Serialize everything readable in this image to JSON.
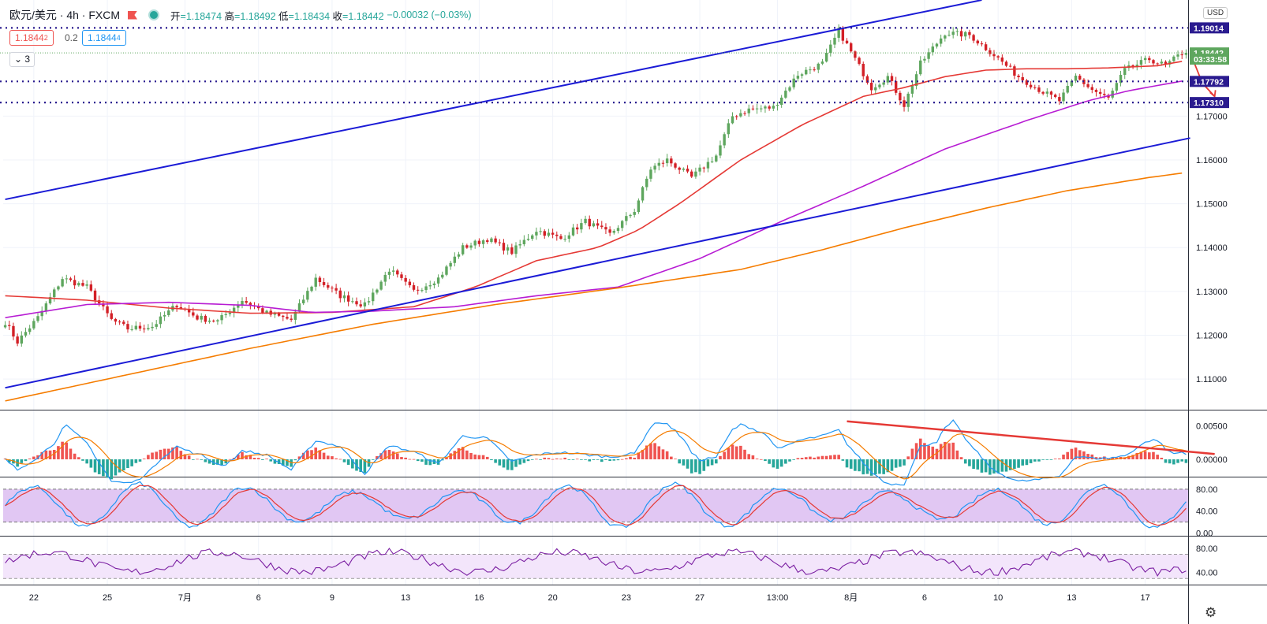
{
  "header": {
    "symbol": "欧元/美元 · 4h · FXCM",
    "ohlc": [
      {
        "label": "开",
        "value": "1.18474"
      },
      {
        "label": "高",
        "value": "1.18492"
      },
      {
        "label": "低",
        "value": "1.18434"
      },
      {
        "label": "收",
        "value": "1.18442"
      }
    ],
    "change": "−0.00032 (−0.03%)"
  },
  "quote": {
    "sell_main": "1.1844",
    "sell_small": "2",
    "spread": "0.2",
    "buy_main": "1.1844",
    "buy_small": "4"
  },
  "indicators_collapsed_count": "3",
  "currency_button": "USD",
  "colors": {
    "up": "#5ea65e",
    "down": "#d32027",
    "grid": "#f0f3fa",
    "trendline": "#1b1bd6",
    "ma_fast": "#e53935",
    "ma_mid": "#b71cd3",
    "ma_slow": "#f57c00",
    "hline": "#2a1b8f",
    "macd_line": "#2196f3",
    "signal_line": "#f57c00",
    "hist_pos": "#ef5350",
    "hist_neg": "#26a69a",
    "stoch_band": "#e1c7f3",
    "rsi_band": "#f3e5fb",
    "rsi_line": "#7b1fa2",
    "annotation": "#e53935"
  },
  "chart_data": {
    "type": "candlestick",
    "price_axis": {
      "labels": [
        "1.19014",
        "1.18442",
        "1.17792",
        "1.17310",
        "1.17000",
        "1.16000",
        "1.15000",
        "1.14000",
        "1.13000",
        "1.12000",
        "1.11000"
      ],
      "ticks": [
        1.17,
        1.16,
        1.15,
        1.14,
        1.13,
        1.12,
        1.11
      ],
      "ylim": [
        1.103,
        1.1965
      ],
      "badges": [
        {
          "value": 1.19014,
          "text": "1.19014",
          "color": "#2a1b8f"
        },
        {
          "value": 1.18442,
          "text": "1.18442",
          "color": "#5ea65e"
        },
        {
          "value": 1.183,
          "text": "03:33:58",
          "color": "#5ea65e"
        },
        {
          "value": 1.17792,
          "text": "1.17792",
          "color": "#2a1b8f"
        },
        {
          "value": 1.1731,
          "text": "1.17310",
          "color": "#2a1b8f"
        }
      ]
    },
    "time_axis": [
      "22",
      "25",
      "7月",
      "6",
      "9",
      "13",
      "16",
      "20",
      "23",
      "27",
      "13:00",
      "8月",
      "6",
      "10",
      "13",
      "17"
    ],
    "bar_count": 290,
    "horizontal_levels": [
      1.19014,
      1.17792,
      1.1731
    ],
    "last_price": 1.18442,
    "trend_channel": {
      "upper": [
        [
          0,
          1.151
        ],
        [
          239,
          1.1965
        ]
      ],
      "lower": [
        [
          0,
          1.108
        ],
        [
          290,
          1.165
        ]
      ]
    },
    "price_path": [
      [
        0,
        1.123
      ],
      [
        3,
        1.1185
      ],
      [
        8,
        1.124
      ],
      [
        14,
        1.133
      ],
      [
        20,
        1.131
      ],
      [
        26,
        1.1235
      ],
      [
        30,
        1.1215
      ],
      [
        36,
        1.122
      ],
      [
        42,
        1.127
      ],
      [
        47,
        1.124
      ],
      [
        52,
        1.1232
      ],
      [
        58,
        1.128
      ],
      [
        64,
        1.125
      ],
      [
        70,
        1.1235
      ],
      [
        76,
        1.133
      ],
      [
        82,
        1.129
      ],
      [
        88,
        1.1268
      ],
      [
        94,
        1.135
      ],
      [
        100,
        1.13
      ],
      [
        106,
        1.133
      ],
      [
        112,
        1.14
      ],
      [
        118,
        1.142
      ],
      [
        124,
        1.139
      ],
      [
        130,
        1.144
      ],
      [
        136,
        1.142
      ],
      [
        142,
        1.146
      ],
      [
        148,
        1.143
      ],
      [
        154,
        1.1485
      ],
      [
        158,
        1.158
      ],
      [
        162,
        1.16
      ],
      [
        168,
        1.156
      ],
      [
        174,
        1.161
      ],
      [
        178,
        1.17
      ],
      [
        182,
        1.1715
      ],
      [
        188,
        1.172
      ],
      [
        194,
        1.1795
      ],
      [
        200,
        1.182
      ],
      [
        204,
        1.1895
      ],
      [
        208,
        1.183
      ],
      [
        212,
        1.1765
      ],
      [
        216,
        1.179
      ],
      [
        220,
        1.1725
      ],
      [
        224,
        1.182
      ],
      [
        230,
        1.189
      ],
      [
        236,
        1.1885
      ],
      [
        242,
        1.184
      ],
      [
        248,
        1.179
      ],
      [
        254,
        1.1755
      ],
      [
        258,
        1.1735
      ],
      [
        262,
        1.179
      ],
      [
        266,
        1.176
      ],
      [
        270,
        1.174
      ],
      [
        274,
        1.1805
      ],
      [
        280,
        1.183
      ],
      [
        284,
        1.1815
      ],
      [
        288,
        1.1844
      ]
    ],
    "moving_averages": [
      {
        "color_key": "ma_fast",
        "points": [
          [
            0,
            1.129
          ],
          [
            20,
            1.128
          ],
          [
            40,
            1.1262
          ],
          [
            60,
            1.125
          ],
          [
            80,
            1.1252
          ],
          [
            100,
            1.1265
          ],
          [
            115,
            1.131
          ],
          [
            130,
            1.137
          ],
          [
            145,
            1.14
          ],
          [
            155,
            1.144
          ],
          [
            165,
            1.15
          ],
          [
            180,
            1.16
          ],
          [
            195,
            1.168
          ],
          [
            210,
            1.1745
          ],
          [
            220,
            1.1765
          ],
          [
            230,
            1.179
          ],
          [
            240,
            1.1805
          ],
          [
            250,
            1.1808
          ],
          [
            260,
            1.1808
          ],
          [
            270,
            1.181
          ],
          [
            282,
            1.1815
          ],
          [
            288,
            1.1825
          ]
        ]
      },
      {
        "color_key": "ma_mid",
        "points": [
          [
            0,
            1.124
          ],
          [
            20,
            1.127
          ],
          [
            40,
            1.1275
          ],
          [
            60,
            1.1268
          ],
          [
            75,
            1.1252
          ],
          [
            90,
            1.1255
          ],
          [
            110,
            1.1265
          ],
          [
            130,
            1.129
          ],
          [
            150,
            1.131
          ],
          [
            170,
            1.1375
          ],
          [
            190,
            1.146
          ],
          [
            210,
            1.154
          ],
          [
            230,
            1.1625
          ],
          [
            250,
            1.169
          ],
          [
            265,
            1.1735
          ],
          [
            275,
            1.1758
          ],
          [
            288,
            1.178
          ]
        ]
      },
      {
        "color_key": "ma_slow",
        "points": [
          [
            0,
            1.105
          ],
          [
            30,
            1.111
          ],
          [
            60,
            1.117
          ],
          [
            90,
            1.1225
          ],
          [
            120,
            1.127
          ],
          [
            150,
            1.1308
          ],
          [
            180,
            1.135
          ],
          [
            200,
            1.1395
          ],
          [
            220,
            1.1445
          ],
          [
            240,
            1.149
          ],
          [
            260,
            1.153
          ],
          [
            280,
            1.156
          ],
          [
            288,
            1.157
          ]
        ]
      }
    ],
    "forecast_arrow": [
      [
        290,
        1.1845
      ],
      [
        293,
        1.1775
      ],
      [
        296,
        1.1745
      ]
    ],
    "panels": [
      {
        "name": "macd",
        "labels": [
          "0.00500",
          "0.00000"
        ],
        "ticks": [
          0.005,
          0.0
        ],
        "ylim": [
          -0.0026,
          0.0072
        ],
        "divergence_line": [
          [
            206,
            0.0057
          ],
          [
            296,
            0.0008
          ]
        ]
      },
      {
        "name": "stochastic",
        "labels": [
          "80.00",
          "40.00",
          "0.00"
        ],
        "ticks": [
          80,
          40,
          0
        ],
        "ylim": [
          -5,
          100
        ],
        "band": [
          20,
          80
        ]
      },
      {
        "name": "rsi",
        "labels": [
          "80.00",
          "40.00"
        ],
        "ticks": [
          80,
          40
        ],
        "ylim": [
          20,
          98
        ],
        "band": [
          30,
          70
        ]
      }
    ]
  }
}
